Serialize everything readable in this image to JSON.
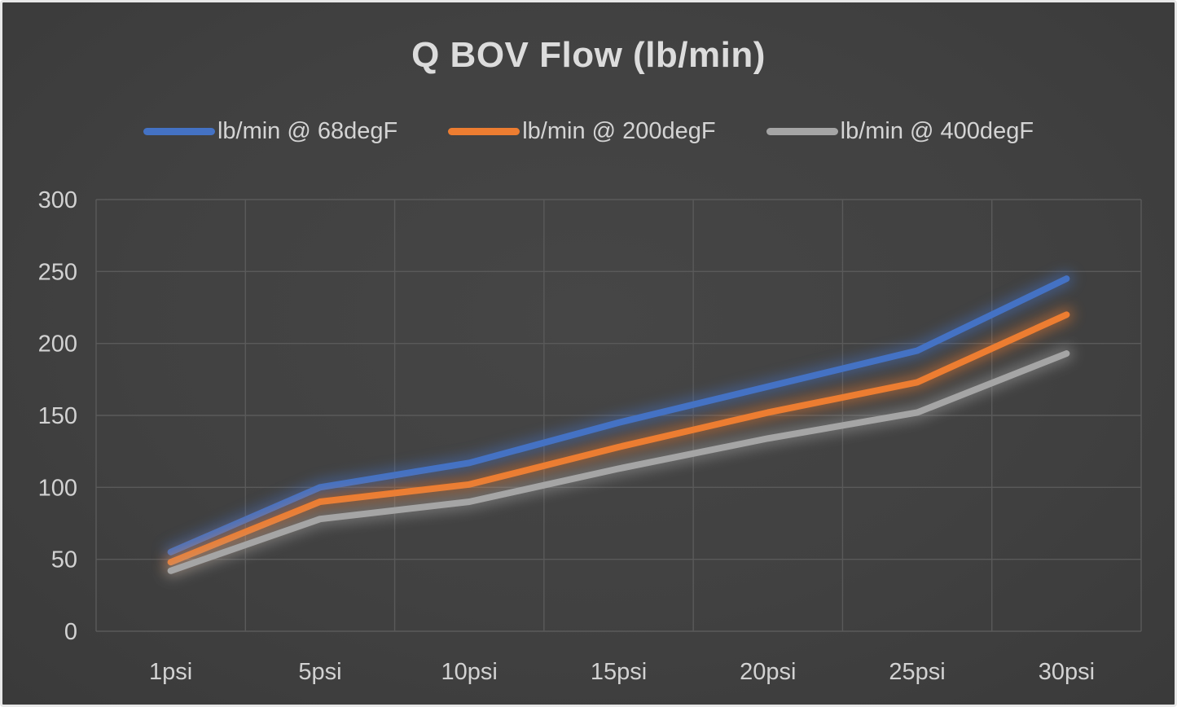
{
  "chart_data": {
    "type": "line",
    "title": "Q BOV Flow (lb/min)",
    "categories": [
      "1psi",
      "5psi",
      "10psi",
      "15psi",
      "20psi",
      "25psi",
      "30psi"
    ],
    "series": [
      {
        "name": "lb/min @ 68degF",
        "color": "#4472C4",
        "values": [
          55,
          100,
          117,
          145,
          170,
          195,
          245
        ]
      },
      {
        "name": "lb/min @ 200degF",
        "color": "#ED7D31",
        "values": [
          48,
          90,
          102,
          128,
          152,
          173,
          220
        ]
      },
      {
        "name": "lb/min @ 400degF",
        "color": "#A5A5A5",
        "values": [
          42,
          78,
          90,
          113,
          134,
          152,
          193
        ]
      }
    ],
    "xlabel": "",
    "ylabel": "",
    "ylim": [
      0,
      300
    ],
    "ytick_step": 50,
    "ytick_labels": [
      "0",
      "50",
      "100",
      "150",
      "200",
      "250",
      "300"
    ],
    "grid": true,
    "legend_position": "top"
  },
  "colors": {
    "background": "#414141",
    "frame_border": "#E8E8E8",
    "gridline": "#5A5A5A",
    "text": "#D2D2D2"
  }
}
